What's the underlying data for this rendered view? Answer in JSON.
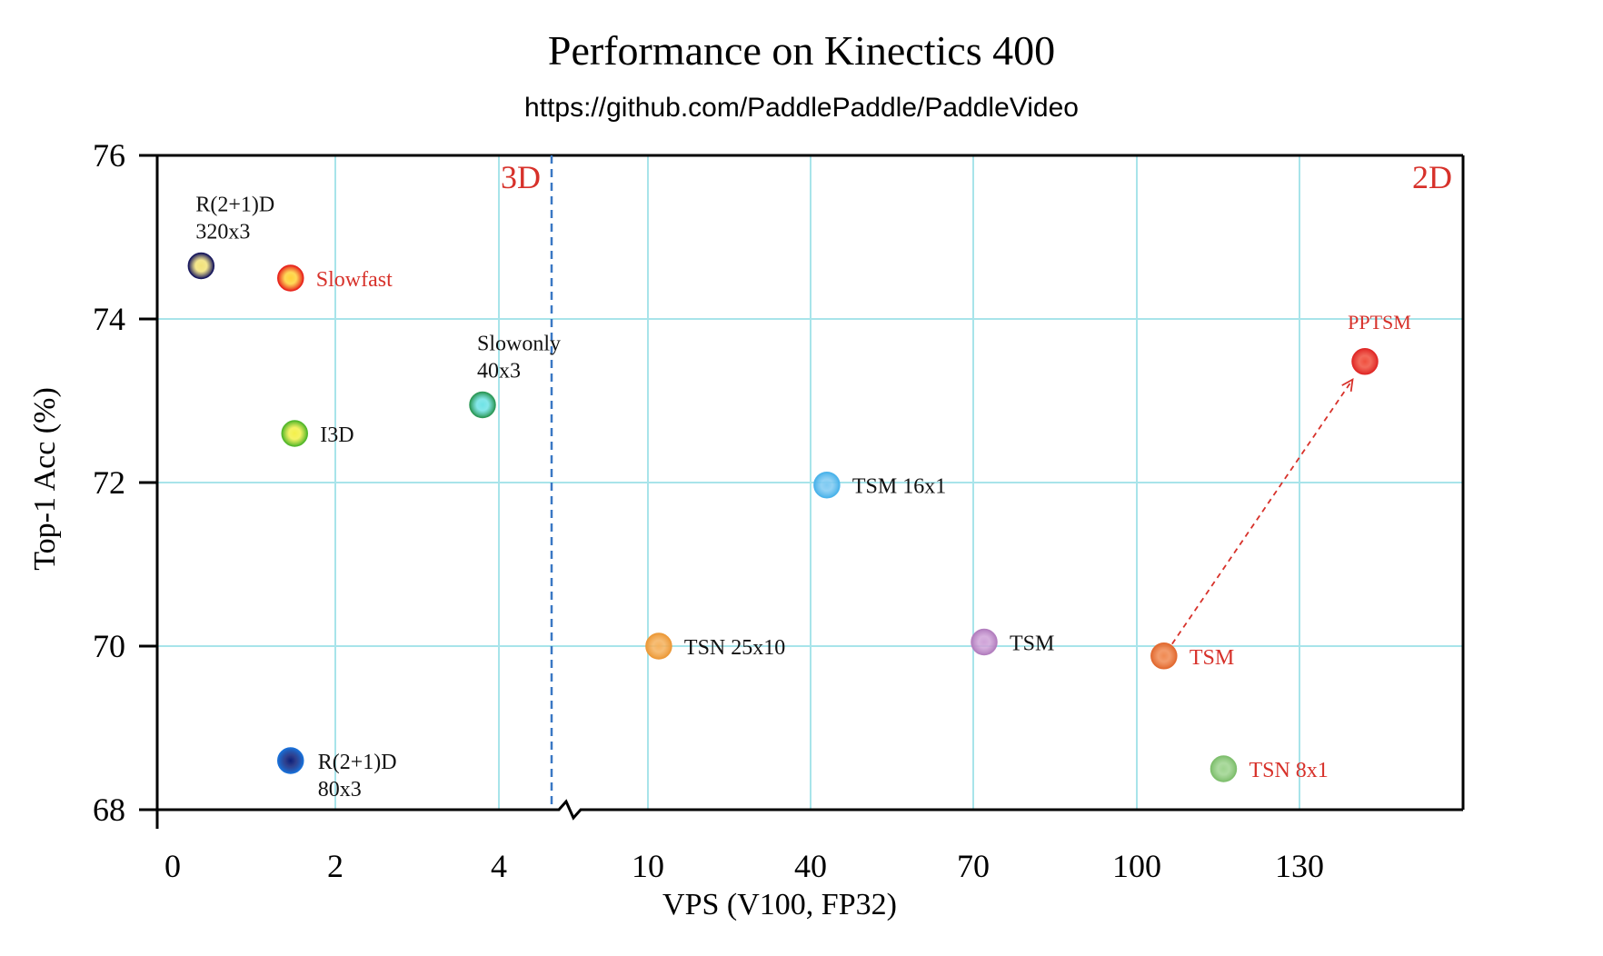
{
  "chart_data": {
    "type": "scatter",
    "title": "Performance on Kinectics 400",
    "subtitle": "https://github.com/PaddlePaddle/PaddleVideo",
    "xlabel": "VPS (V100, FP32)",
    "ylabel": "Top-1 Acc (%)",
    "x_scale": "broken: linear 0-4 for 3D models, then 10-130 for 2D models",
    "x_ticks": [
      "0",
      "2",
      "4",
      "10",
      "40",
      "70",
      "100",
      "130"
    ],
    "x_tick_values": [
      0,
      2,
      4,
      10,
      40,
      70,
      100,
      130
    ],
    "ylim": [
      68,
      76
    ],
    "y_ticks": [
      "68",
      "70",
      "72",
      "74",
      "76"
    ],
    "y_tick_values": [
      68,
      70,
      72,
      74,
      76
    ],
    "grid": true,
    "regions": [
      {
        "label": "3D",
        "x_from": 0,
        "x_to": 4.8
      },
      {
        "label": "2D",
        "x_from": 4.8,
        "x_to": 160
      }
    ],
    "divider_x": 4.8,
    "points": [
      {
        "name": "R(2+1)D 320x3",
        "label_lines": [
          "R(2+1)D",
          "320x3"
        ],
        "x": 0.35,
        "y": 74.65,
        "color": "#1a1a5e",
        "glow": "#f2e27a",
        "label_color": "#111111",
        "label_pos": "above"
      },
      {
        "name": "Slowfast",
        "label_lines": [
          "Slowfast"
        ],
        "x": 1.45,
        "y": 74.5,
        "color": "#e8261e",
        "glow": "#ffd23a",
        "label_color": "#d7312a",
        "label_pos": "right"
      },
      {
        "name": "Slowonly 40x3",
        "label_lines": [
          "Slowonly",
          "40x3"
        ],
        "x": 3.8,
        "y": 72.95,
        "color": "#2e9a5a",
        "glow": "#6fe3e6",
        "label_color": "#111111",
        "label_pos": "above"
      },
      {
        "name": "I3D",
        "label_lines": [
          "I3D"
        ],
        "x": 1.5,
        "y": 72.6,
        "color": "#55b82c",
        "glow": "#f3f04a",
        "label_color": "#111111",
        "label_pos": "right"
      },
      {
        "name": "R(2+1)D 80x3",
        "label_lines": [
          "R(2+1)D",
          "80x3"
        ],
        "x": 1.45,
        "y": 68.6,
        "color": "#1a6fd6",
        "glow": "#0b1f7a",
        "label_color": "#111111",
        "label_pos": "right-below"
      },
      {
        "name": "TSN 25x10",
        "label_lines": [
          "TSN 25x10"
        ],
        "x": 12,
        "y": 70.0,
        "color": "#ec9a3a",
        "glow": "#f5b25e",
        "label_color": "#111111",
        "label_pos": "right"
      },
      {
        "name": "TSM 16x1",
        "label_lines": [
          "TSM 16x1"
        ],
        "x": 43,
        "y": 71.97,
        "color": "#4bb3ea",
        "glow": "#7fcaf2",
        "label_color": "#111111",
        "label_pos": "right"
      },
      {
        "name": "TSM",
        "label_lines": [
          "TSM"
        ],
        "x": 72,
        "y": 70.05,
        "color": "#b37fbf",
        "glow": "#cfa3d8",
        "label_color": "#111111",
        "label_pos": "right"
      },
      {
        "name": "TSM (PaddleVideo)",
        "label_lines": [
          "TSM"
        ],
        "x": 105,
        "y": 69.88,
        "color": "#e26b32",
        "glow": "#f08a52",
        "label_color": "#d7312a",
        "label_pos": "right"
      },
      {
        "name": "TSN 8x1",
        "label_lines": [
          "TSN 8x1"
        ],
        "x": 116,
        "y": 68.5,
        "color": "#7fbf6e",
        "glow": "#9ed48f",
        "label_color": "#d7312a",
        "label_pos": "right"
      },
      {
        "name": "PPTSM",
        "label_lines": [
          "PPTSM"
        ],
        "x": 142,
        "y": 73.48,
        "color": "#e02a28",
        "glow": "#f0503e",
        "label_color": "#d7312a",
        "label_pos": "above"
      }
    ],
    "annotations": [
      {
        "type": "arrow",
        "from_point": "TSM (PaddleVideo)",
        "to_point": "PPTSM",
        "style": "dashed",
        "color": "#d7312a"
      }
    ]
  }
}
